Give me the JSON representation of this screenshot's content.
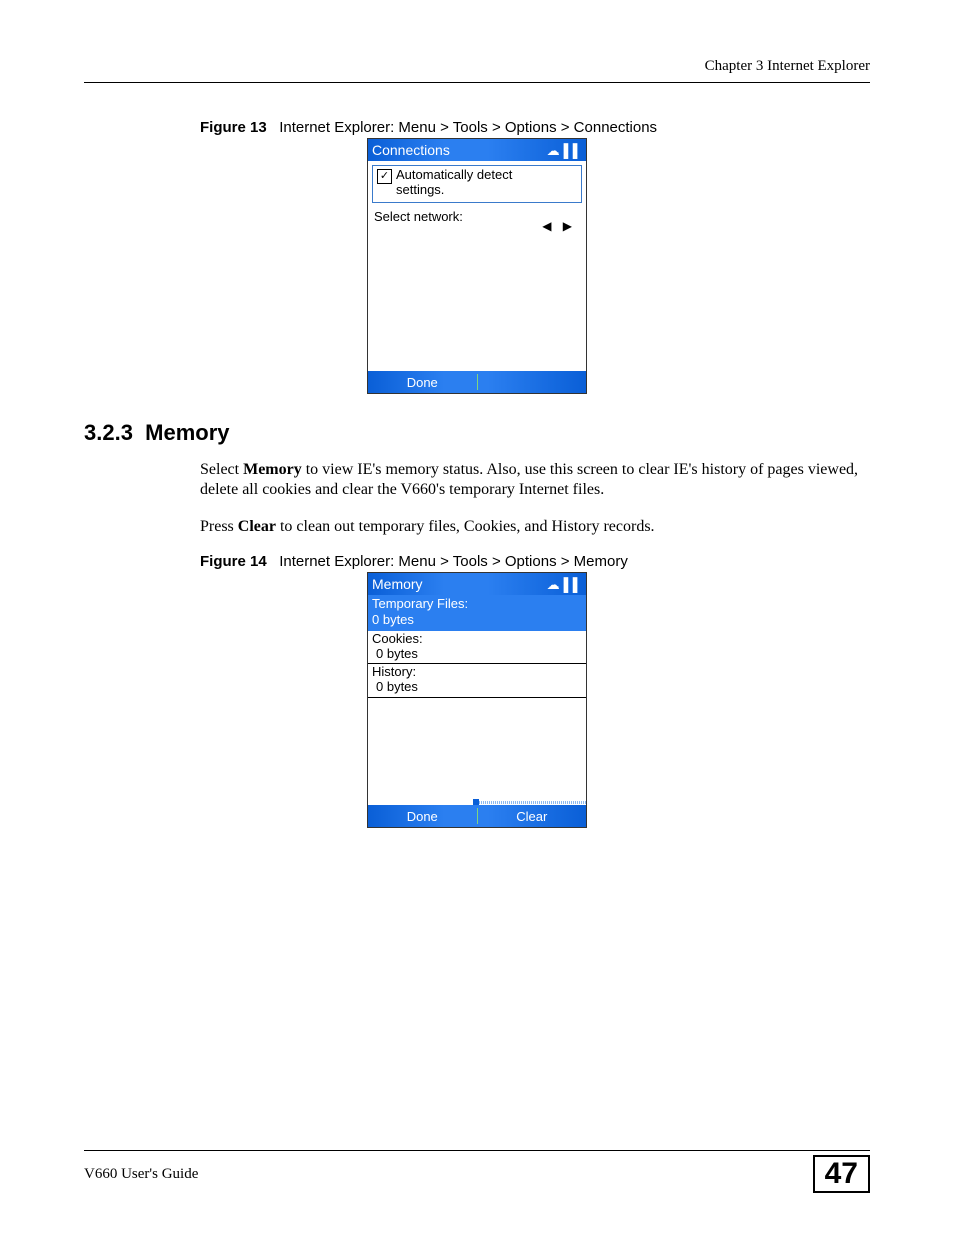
{
  "header": {
    "chapter": "Chapter 3 Internet Explorer"
  },
  "figure13": {
    "label": "Figure 13",
    "caption": "Internet Explorer: Menu > Tools > Options > Connections",
    "titlebar": "Connections",
    "checkbox_label_line1": "Automatically detect",
    "checkbox_label_line2": "settings.",
    "checkbox_checked_glyph": "✓",
    "select_network_label": "Select network:",
    "arrows": "◀  ▶",
    "softkey_left": "Done"
  },
  "section": {
    "number": "3.2.3",
    "title": "Memory",
    "para1_a": "Select ",
    "para1_bold": "Memory",
    "para1_b": " to view IE's memory status. Also, use this screen to clear IE's history of pages viewed, delete all cookies and clear the V660's temporary Internet files.",
    "para2_a": "Press ",
    "para2_bold": "Clear",
    "para2_b": " to clean out temporary files, Cookies, and History records."
  },
  "figure14": {
    "label": "Figure 14",
    "caption": "Internet Explorer: Menu > Tools > Options > Memory",
    "titlebar": "Memory",
    "temp_label": "Temporary Files:",
    "temp_value": "0 bytes",
    "cookies_label": "Cookies:",
    "cookies_value": "0 bytes",
    "history_label": "History:",
    "history_value": "0 bytes",
    "softkey_left": "Done",
    "softkey_right": "Clear"
  },
  "footer": {
    "guide": "V660 User's Guide",
    "page": "47"
  },
  "colors": {
    "blue_grad_dark": "#0a5fd7",
    "blue_grad_light": "#2b7ff0",
    "divider_green": "#7fd47f"
  }
}
